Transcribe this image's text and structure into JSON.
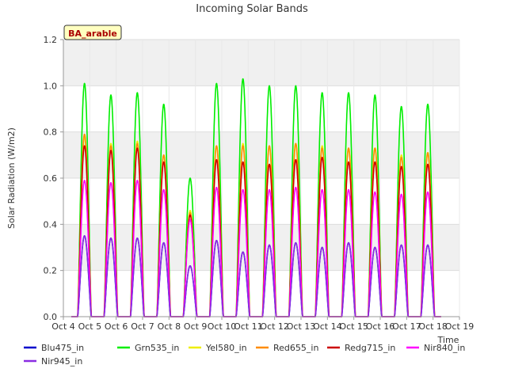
{
  "chart_data": {
    "type": "line",
    "title": "Incoming Solar Bands",
    "xlabel": "Time",
    "ylabel": "Solar Radiation (W/m2)",
    "annotation": "BA_arable",
    "xlim": [
      4,
      19
    ],
    "ylim": [
      0,
      1.2
    ],
    "x_ticks": [
      {
        "v": 4,
        "label": "Oct 4"
      },
      {
        "v": 5,
        "label": "Oct 5"
      },
      {
        "v": 6,
        "label": "Oct 6"
      },
      {
        "v": 7,
        "label": "Oct 7"
      },
      {
        "v": 8,
        "label": "Oct 8"
      },
      {
        "v": 9,
        "label": "Oct 9"
      },
      {
        "v": 10,
        "label": "Oct 10"
      },
      {
        "v": 11,
        "label": "Oct 11"
      },
      {
        "v": 12,
        "label": "Oct 12"
      },
      {
        "v": 13,
        "label": "Oct 13"
      },
      {
        "v": 14,
        "label": "Oct 14"
      },
      {
        "v": 15,
        "label": "Oct 15"
      },
      {
        "v": 16,
        "label": "Oct 16"
      },
      {
        "v": 17,
        "label": "Oct 17"
      },
      {
        "v": 18,
        "label": "Oct 18"
      },
      {
        "v": 19,
        "label": "Oct 19"
      }
    ],
    "y_ticks": [
      "0.0",
      "0.2",
      "0.4",
      "0.6",
      "0.8",
      "1.0",
      "1.2"
    ],
    "y_tick_values": [
      0,
      0.2,
      0.4,
      0.6,
      0.8,
      1.0,
      1.2
    ],
    "grid": true,
    "legend_position": "bottom",
    "data_start_day": 4.3,
    "data_end_day": 18.3,
    "day_centers": [
      4.8,
      5.8,
      6.8,
      7.8,
      8.8,
      9.8,
      10.8,
      11.8,
      12.8,
      13.8,
      14.8,
      15.8,
      16.8,
      17.8
    ],
    "series": [
      {
        "name": "Blu475_in",
        "color": "#0000cc",
        "peaks": [
          0.35,
          0.34,
          0.34,
          0.32,
          0.22,
          0.33,
          0.28,
          0.31,
          0.32,
          0.3,
          0.32,
          0.3,
          0.31,
          0.31
        ]
      },
      {
        "name": "Grn535_in",
        "color": "#00ee00",
        "peaks": [
          1.01,
          0.96,
          0.97,
          0.92,
          0.6,
          1.01,
          1.03,
          1.0,
          1.0,
          0.97,
          0.97,
          0.96,
          0.91,
          0.92
        ]
      },
      {
        "name": "Yel580_in",
        "color": "#eeee00",
        "peaks": [
          0.78,
          0.75,
          0.76,
          0.7,
          0.46,
          0.74,
          0.75,
          0.74,
          0.75,
          0.74,
          0.73,
          0.73,
          0.7,
          0.71
        ]
      },
      {
        "name": "Red655_in",
        "color": "#ff8c00",
        "peaks": [
          0.79,
          0.74,
          0.75,
          0.7,
          0.45,
          0.74,
          0.74,
          0.74,
          0.75,
          0.73,
          0.73,
          0.73,
          0.69,
          0.71
        ]
      },
      {
        "name": "Redg715_in",
        "color": "#cc0000",
        "peaks": [
          0.74,
          0.72,
          0.73,
          0.67,
          0.44,
          0.68,
          0.67,
          0.66,
          0.68,
          0.69,
          0.67,
          0.67,
          0.65,
          0.66
        ]
      },
      {
        "name": "Nir840_in",
        "color": "#ff00ff",
        "peaks": [
          0.59,
          0.58,
          0.59,
          0.55,
          0.42,
          0.56,
          0.55,
          0.55,
          0.56,
          0.55,
          0.55,
          0.54,
          0.53,
          0.54
        ]
      },
      {
        "name": "Nir945_in",
        "color": "#8a2be2",
        "peaks": [
          0.35,
          0.34,
          0.34,
          0.32,
          0.22,
          0.33,
          0.28,
          0.31,
          0.32,
          0.3,
          0.32,
          0.3,
          0.31,
          0.31
        ]
      }
    ]
  }
}
